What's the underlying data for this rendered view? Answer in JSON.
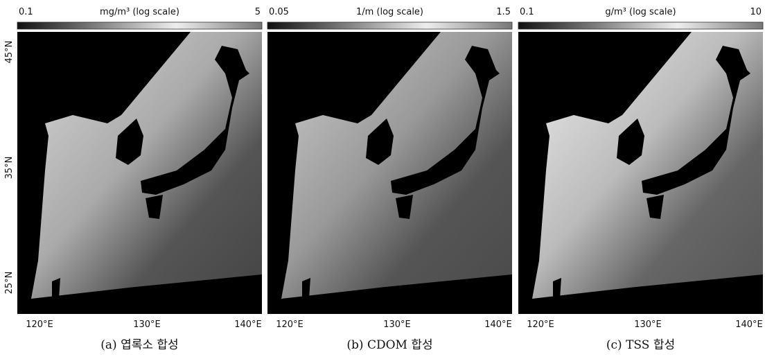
{
  "panels": [
    {
      "colorbar": {
        "min": "0.1",
        "unit": "mg/m³ (log scale)",
        "max": "5"
      },
      "lon_labels": [
        "120°E",
        "130°E",
        "140°E"
      ],
      "caption": "(a) 엽록소 합성"
    },
    {
      "colorbar": {
        "min": "0.05",
        "unit": "1/m (log scale)",
        "max": "1.5"
      },
      "lon_labels": [
        "120°E",
        "130°E",
        "140°E"
      ],
      "caption": "(b) CDOM 합성"
    },
    {
      "colorbar": {
        "min": "0.1",
        "unit": "g/m³ (log scale)",
        "max": "10"
      },
      "lon_labels": [
        "120°E",
        "130°E",
        "140°E"
      ],
      "caption": "(c) TSS 합성"
    }
  ],
  "lat_labels": [
    "45°N",
    "35°N",
    "25°N"
  ]
}
